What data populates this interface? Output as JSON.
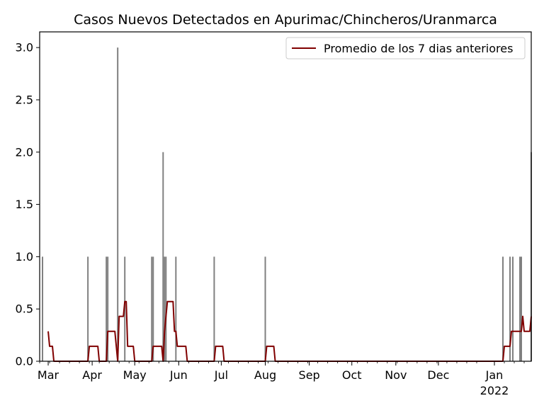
{
  "chart_data": {
    "type": "bar",
    "title": "Casos Nuevos Detectados en Apurimac/Chincheros/Uranmarca",
    "xlabel": "",
    "ylabel": "",
    "ylim": [
      0,
      3.15
    ],
    "y_ticks": [
      0.0,
      0.5,
      1.0,
      1.5,
      2.0,
      2.5,
      3.0
    ],
    "y_tick_labels": [
      "0.0",
      "0.5",
      "1.0",
      "1.5",
      "2.0",
      "2.5",
      "3.0"
    ],
    "x_range": [
      "2020-02-24",
      "2022-01-27"
    ],
    "x_ticks": [
      {
        "date": "2020-03-01",
        "label": "Mar"
      },
      {
        "date": "2020-04-01",
        "label": "Apr"
      },
      {
        "date": "2020-05-01",
        "label": "May"
      },
      {
        "date": "2020-06-01",
        "label": "Jun"
      },
      {
        "date": "2020-07-01",
        "label": "Jul"
      },
      {
        "date": "2020-08-01",
        "label": "Aug"
      },
      {
        "date": "2020-09-01",
        "label": "Sep"
      },
      {
        "date": "2020-10-01",
        "label": "Oct"
      },
      {
        "date": "2020-11-01",
        "label": "Nov"
      },
      {
        "date": "2020-12-01",
        "label": "Dec"
      },
      {
        "date": "2022-01-01",
        "label": "Jan",
        "sublabel": "2022"
      }
    ],
    "bar_color": "#808080",
    "line_color": "#800000",
    "legend": {
      "position": "top-right",
      "entries": [
        "Promedio de los 7 dias anteriores"
      ]
    },
    "series": [
      {
        "kind": "bar",
        "points": [
          [
            "2020-02-26",
            1
          ],
          [
            "2020-03-29",
            1
          ],
          [
            "2020-04-11",
            1
          ],
          [
            "2020-04-12",
            1
          ],
          [
            "2020-04-19",
            3
          ],
          [
            "2020-04-24",
            1
          ],
          [
            "2020-05-13",
            1
          ],
          [
            "2020-05-14",
            1
          ],
          [
            "2020-05-21",
            2
          ],
          [
            "2020-05-22",
            1
          ],
          [
            "2020-05-23",
            1
          ],
          [
            "2020-05-30",
            1
          ],
          [
            "2020-06-26",
            1
          ],
          [
            "2020-08-01",
            1
          ],
          [
            "2022-01-07",
            1
          ],
          [
            "2022-01-12",
            1
          ],
          [
            "2022-01-14",
            1
          ],
          [
            "2022-01-19",
            1
          ],
          [
            "2022-01-20",
            1
          ],
          [
            "2022-01-27",
            2
          ]
        ]
      },
      {
        "kind": "line",
        "name": "Promedio de los 7 dias anteriores",
        "points": [
          [
            "2020-03-01",
            0.286
          ],
          [
            "2020-03-02",
            0.143
          ],
          [
            "2020-03-04",
            0.143
          ],
          [
            "2020-03-05",
            0.0
          ],
          [
            "2020-03-29",
            0.0
          ],
          [
            "2020-03-30",
            0.143
          ],
          [
            "2020-04-05",
            0.143
          ],
          [
            "2020-04-06",
            0.0
          ],
          [
            "2020-04-11",
            0.0
          ],
          [
            "2020-04-12",
            0.286
          ],
          [
            "2020-04-17",
            0.286
          ],
          [
            "2020-04-19",
            0.0
          ],
          [
            "2020-04-20",
            0.429
          ],
          [
            "2020-04-23",
            0.429
          ],
          [
            "2020-04-24",
            0.571
          ],
          [
            "2020-04-25",
            0.571
          ],
          [
            "2020-04-26",
            0.143
          ],
          [
            "2020-04-30",
            0.143
          ],
          [
            "2020-05-01",
            0.0
          ],
          [
            "2020-05-13",
            0.0
          ],
          [
            "2020-05-14",
            0.143
          ],
          [
            "2020-05-20",
            0.143
          ],
          [
            "2020-05-21",
            0.0
          ],
          [
            "2020-05-22",
            0.286
          ],
          [
            "2020-05-23",
            0.429
          ],
          [
            "2020-05-24",
            0.571
          ],
          [
            "2020-05-28",
            0.571
          ],
          [
            "2020-05-29",
            0.286
          ],
          [
            "2020-05-30",
            0.286
          ],
          [
            "2020-05-31",
            0.143
          ],
          [
            "2020-06-06",
            0.143
          ],
          [
            "2020-06-07",
            0.0
          ],
          [
            "2020-06-26",
            0.0
          ],
          [
            "2020-06-27",
            0.143
          ],
          [
            "2020-07-02",
            0.143
          ],
          [
            "2020-07-03",
            0.0
          ],
          [
            "2020-08-01",
            0.0
          ],
          [
            "2020-08-02",
            0.143
          ],
          [
            "2020-08-07",
            0.143
          ],
          [
            "2020-08-08",
            0.0
          ],
          [
            "2022-01-07",
            0.0
          ],
          [
            "2022-01-08",
            0.143
          ],
          [
            "2022-01-12",
            0.143
          ],
          [
            "2022-01-13",
            0.286
          ],
          [
            "2022-01-20",
            0.286
          ],
          [
            "2022-01-21",
            0.429
          ],
          [
            "2022-01-22",
            0.286
          ],
          [
            "2022-01-26",
            0.286
          ],
          [
            "2022-01-27",
            0.429
          ]
        ]
      }
    ]
  }
}
